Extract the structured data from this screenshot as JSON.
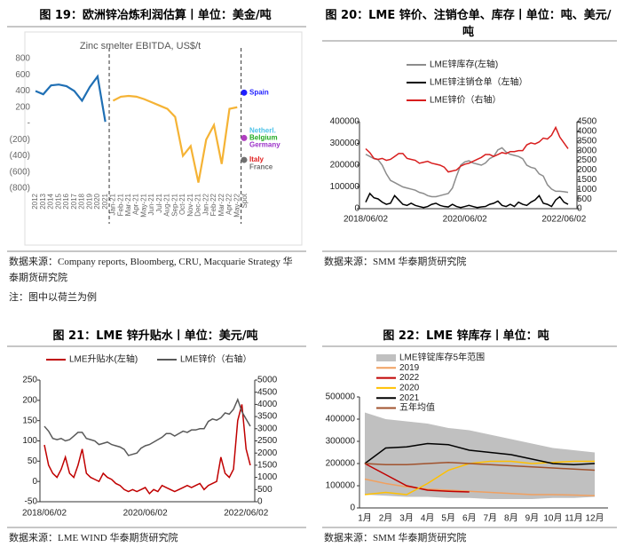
{
  "chart_data": [
    {
      "type": "line",
      "title": "图 19：欧洲锌冶炼利润估算丨单位：美金/吨",
      "subtitle": "Zinc smelter EBITDA, US$/t",
      "categories": [
        "2012",
        "2013",
        "2014",
        "2015",
        "2016",
        "2017",
        "2018",
        "2019",
        "2020",
        "2021",
        "Jan-21",
        "Feb-21",
        "Mar-21",
        "Apr-21",
        "May-21",
        "Jun-21",
        "Jul-21",
        "Aug-21",
        "Sep-21",
        "Oct-21",
        "Nov-21",
        "Dec-21",
        "Jan-22",
        "Feb-22",
        "Mar-22",
        "Apr-22",
        "May-22",
        "Spot"
      ],
      "series": [
        {
          "color": "#1f6fb4",
          "values": [
            400,
            360,
            470,
            480,
            460,
            400,
            280,
            450,
            580,
            20,
            null,
            null,
            null,
            null,
            null,
            null,
            null,
            null,
            null,
            null,
            null,
            null,
            null,
            null,
            null,
            null,
            null,
            null
          ]
        },
        {
          "color": "#f5b335",
          "values": [
            null,
            null,
            null,
            null,
            null,
            null,
            null,
            null,
            null,
            null,
            280,
            330,
            340,
            330,
            300,
            260,
            220,
            180,
            80,
            -400,
            -280,
            -730,
            -200,
            -20,
            -500,
            180,
            200,
            null
          ]
        }
      ],
      "labels": [
        {
          "text": "Spain",
          "color": "#1f1fff",
          "value": 380,
          "marker": true,
          "marker_color": "#1f1fff"
        },
        {
          "text": "Netherl.",
          "color": "#4fc3e8",
          "value": -90,
          "marker": false
        },
        {
          "text": "Belgium",
          "color": "#22aa22",
          "value": -180,
          "marker": true,
          "marker_color": "#b040c0"
        },
        {
          "text": "Germany",
          "color": "#9b30c8",
          "value": -270,
          "marker": false
        },
        {
          "text": "Italy",
          "color": "#e02020",
          "value": -450,
          "marker": true,
          "marker_color": "#707070"
        },
        {
          "text": "France",
          "color": "#707070",
          "value": -540,
          "marker": false
        }
      ],
      "ylim": [
        -800,
        800
      ],
      "yticks": [
        800,
        600,
        400,
        200,
        {
          "value": 0,
          "label": "-"
        },
        {
          "value": -200,
          "label": "(200)"
        },
        {
          "value": -400,
          "label": "(400)"
        },
        {
          "value": -600,
          "label": "(600)"
        },
        {
          "value": -800,
          "label": "(800)"
        }
      ]
    },
    {
      "type": "line",
      "title": "图 20：LME 锌价、注销仓单、库存丨单位：吨、美元/吨",
      "categories": [
        "2018/06/02",
        null,
        null,
        null,
        null,
        null,
        null,
        null,
        null,
        null,
        null,
        null,
        null,
        null,
        null,
        null,
        null,
        null,
        null,
        null,
        null,
        null,
        null,
        null,
        "2020/06/02",
        null,
        null,
        null,
        null,
        null,
        null,
        null,
        null,
        null,
        null,
        null,
        null,
        null,
        null,
        null,
        null,
        null,
        null,
        null,
        null,
        null,
        null,
        null,
        "2022/06/02",
        null
      ],
      "series": [
        {
          "name": "LME锌库存(左轴)",
          "color": "#8c8c8c",
          "values": [
            250000,
            240000,
            230000,
            225000,
            200000,
            160000,
            130000,
            120000,
            110000,
            100000,
            95000,
            90000,
            85000,
            75000,
            70000,
            60000,
            55000,
            55000,
            60000,
            65000,
            70000,
            95000,
            150000,
            200000,
            215000,
            220000,
            210000,
            205000,
            200000,
            210000,
            230000,
            240000,
            270000,
            280000,
            260000,
            250000,
            245000,
            240000,
            230000,
            200000,
            190000,
            185000,
            160000,
            150000,
            110000,
            90000,
            80000,
            80000,
            78000,
            75000
          ]
        },
        {
          "name": "LME锌注销仓单（左轴）",
          "color": "#000000",
          "values": [
            30000,
            70000,
            50000,
            45000,
            30000,
            20000,
            25000,
            60000,
            40000,
            20000,
            15000,
            25000,
            15000,
            10000,
            5000,
            10000,
            20000,
            25000,
            15000,
            10000,
            8000,
            20000,
            10000,
            5000,
            10000,
            15000,
            10000,
            5000,
            8000,
            10000,
            20000,
            25000,
            35000,
            15000,
            10000,
            20000,
            10000,
            30000,
            20000,
            15000,
            30000,
            40000,
            60000,
            25000,
            20000,
            10000,
            40000,
            55000,
            30000,
            20000
          ]
        },
        {
          "name": "LME锌价（右轴）",
          "color": "#d81e1e",
          "axis": "y2",
          "values": [
            3100,
            2900,
            2600,
            2550,
            2600,
            2500,
            2550,
            2700,
            2850,
            2850,
            2600,
            2550,
            2500,
            2350,
            2400,
            2450,
            2350,
            2300,
            2250,
            2150,
            1900,
            1950,
            2000,
            2200,
            2300,
            2350,
            2450,
            2550,
            2650,
            2800,
            2800,
            2700,
            2800,
            2900,
            2850,
            2950,
            2950,
            3000,
            3000,
            3300,
            3400,
            3350,
            3450,
            3650,
            3600,
            3800,
            4200,
            3700,
            3400,
            3100
          ]
        }
      ],
      "ylim": [
        0,
        400000
      ],
      "yticks": [
        0,
        100000,
        200000,
        300000,
        400000
      ],
      "y2lim": [
        0,
        4500
      ],
      "y2ticks": [
        0,
        500,
        1000,
        1500,
        2000,
        2500,
        3000,
        3500,
        4000,
        4500
      ]
    },
    {
      "type": "line",
      "title": "图 21：LME 锌升贴水丨单位：美元/吨",
      "categories": [
        "2018/06/02",
        null,
        null,
        null,
        null,
        null,
        null,
        null,
        null,
        null,
        null,
        null,
        null,
        null,
        null,
        null,
        null,
        null,
        null,
        null,
        null,
        null,
        null,
        null,
        "2020/06/02",
        null,
        null,
        null,
        null,
        null,
        null,
        null,
        null,
        null,
        null,
        null,
        null,
        null,
        null,
        null,
        null,
        null,
        null,
        null,
        null,
        null,
        null,
        null,
        "2022/06/02",
        null
      ],
      "series": [
        {
          "name": "LME升贴水(左轴)",
          "color": "#c00000",
          "values": [
            90,
            40,
            20,
            10,
            30,
            60,
            20,
            10,
            40,
            80,
            20,
            10,
            5,
            0,
            20,
            10,
            5,
            -5,
            -10,
            -20,
            -25,
            -20,
            -25,
            -20,
            -15,
            -30,
            -20,
            -25,
            -10,
            -15,
            -20,
            -25,
            -20,
            -15,
            -10,
            -15,
            -10,
            -5,
            -20,
            -10,
            -5,
            0,
            60,
            20,
            10,
            30,
            150,
            190,
            80,
            40
          ]
        },
        {
          "name": "LME锌价（右轴）",
          "color": "#595959",
          "axis": "y2",
          "values": [
            3100,
            2900,
            2600,
            2550,
            2600,
            2500,
            2550,
            2700,
            2850,
            2850,
            2600,
            2550,
            2500,
            2350,
            2400,
            2450,
            2350,
            2300,
            2250,
            2150,
            1900,
            1950,
            2000,
            2200,
            2300,
            2350,
            2450,
            2550,
            2650,
            2800,
            2800,
            2700,
            2800,
            2900,
            2850,
            2950,
            2950,
            3000,
            3000,
            3300,
            3400,
            3350,
            3450,
            3650,
            3600,
            3800,
            4200,
            3700,
            3400,
            3100
          ]
        }
      ],
      "ylim": [
        -50,
        250
      ],
      "yticks": [
        -50,
        0,
        50,
        100,
        150,
        200,
        250
      ],
      "y2lim": [
        0,
        5000
      ],
      "y2ticks": [
        0,
        500,
        1000,
        1500,
        2000,
        2500,
        3000,
        3500,
        4000,
        4500,
        5000
      ]
    },
    {
      "type": "line",
      "title": "图 22：LME 锌库存丨单位：吨",
      "categories": [
        "1月",
        "2月",
        "3月",
        "4月",
        "5月",
        "6月",
        "7月",
        "8月",
        "9月",
        "10月",
        "11月",
        "12月"
      ],
      "series": [
        {
          "name": "LME锌锭库存5年范围",
          "color": "#c0c0c0",
          "values": [
            430000,
            400000,
            390000,
            380000,
            360000,
            350000,
            330000,
            310000,
            290000,
            270000,
            260000,
            250000
          ],
          "low": [
            60000,
            55000,
            50000,
            50000,
            45000,
            45000,
            40000,
            40000,
            40000,
            45000,
            45000,
            50000
          ]
        },
        {
          "name": "2019",
          "color": "#f0a060",
          "values": [
            130000,
            110000,
            95000,
            85000,
            80000,
            75000,
            70000,
            65000,
            60000,
            60000,
            58000,
            55000
          ]
        },
        {
          "name": "2022",
          "color": "#c00000",
          "values": [
            200000,
            150000,
            100000,
            80000,
            75000,
            72000,
            null,
            null,
            null,
            null,
            null,
            null
          ]
        },
        {
          "name": "2020",
          "color": "#ffc000",
          "values": [
            60000,
            70000,
            60000,
            110000,
            170000,
            200000,
            210000,
            210000,
            200000,
            205000,
            210000,
            210000
          ]
        },
        {
          "name": "2021",
          "color": "#000000",
          "values": [
            200000,
            270000,
            275000,
            290000,
            285000,
            260000,
            250000,
            240000,
            220000,
            200000,
            195000,
            200000
          ]
        },
        {
          "name": "五年均值",
          "color": "#a0522d",
          "values": [
            200000,
            195000,
            195000,
            200000,
            205000,
            200000,
            195000,
            190000,
            185000,
            180000,
            175000,
            170000
          ]
        }
      ],
      "ylim": [
        0,
        500000
      ],
      "yticks": [
        0,
        100000,
        200000,
        300000,
        400000,
        500000
      ]
    }
  ],
  "sources": [
    "数据来源：Company reports, Bloomberg, CRU, Macquarie Strategy 华泰期货研究院",
    "数据来源：SMM 华泰期货研究院",
    "数据来源：LME WIND 华泰期货研究院",
    "数据来源：SMM 华泰期货研究院"
  ],
  "note": "注：图中以荷兰为例"
}
